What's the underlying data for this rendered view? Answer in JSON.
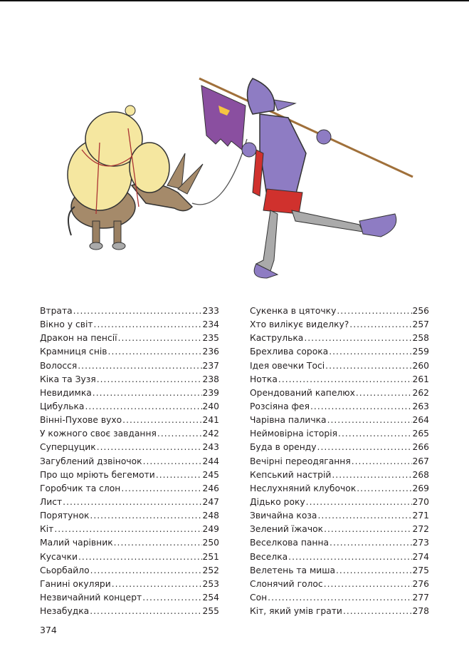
{
  "illustration": {
    "description_icon": "donkey-and-knight-illustration",
    "colors": {
      "knight": "#8e7cc3",
      "bundles": "#f5e7a0",
      "donkey": "#a58a6a",
      "flag": "#8a4fa0",
      "skirt": "#d0312d"
    }
  },
  "toc": {
    "left": [
      {
        "title": "Втрата",
        "page": "233"
      },
      {
        "title": "Вікно у світ",
        "page": "234"
      },
      {
        "title": "Дракон на пенсії",
        "page": "235"
      },
      {
        "title": "Крамниця снів",
        "page": "236"
      },
      {
        "title": "Волосся",
        "page": "237"
      },
      {
        "title": "Кіка та Зузя",
        "page": "238"
      },
      {
        "title": "Невидимка",
        "page": "239"
      },
      {
        "title": "Цибулька",
        "page": "240"
      },
      {
        "title": "Вінні-Пухове вухо",
        "page": "241"
      },
      {
        "title": "У кожного своє завдання",
        "page": "242"
      },
      {
        "title": "Суперцуцик",
        "page": "243"
      },
      {
        "title": "Загублений дзвіночок",
        "page": "244"
      },
      {
        "title": "Про що мріють бегемоти",
        "page": "245"
      },
      {
        "title": "Горобчик та слон",
        "page": "246"
      },
      {
        "title": "Лист",
        "page": "247"
      },
      {
        "title": "Порятунок",
        "page": "248"
      },
      {
        "title": "Кіт",
        "page": "249"
      },
      {
        "title": "Малий чарівник",
        "page": "250"
      },
      {
        "title": "Кусачки",
        "page": "251"
      },
      {
        "title": "Сьорбайло",
        "page": "252"
      },
      {
        "title": "Ганині окуляри",
        "page": "253"
      },
      {
        "title": "Незвичайний концерт",
        "page": "254"
      },
      {
        "title": "Незабудка",
        "page": "255"
      }
    ],
    "right": [
      {
        "title": "Сукенка в цяточку",
        "page": "256"
      },
      {
        "title": "Хто вилікує виделку?",
        "page": "257"
      },
      {
        "title": "Каструлька",
        "page": "258"
      },
      {
        "title": "Брехлива сорока",
        "page": "259"
      },
      {
        "title": "Ідея овечки Тосі",
        "page": "260"
      },
      {
        "title": "Нотка",
        "page": "261"
      },
      {
        "title": "Орендований капелюх",
        "page": "262"
      },
      {
        "title": "Розсіяна фея",
        "page": "263"
      },
      {
        "title": "Чарівна паличка",
        "page": "264"
      },
      {
        "title": "Неймовірна історія",
        "page": "265"
      },
      {
        "title": "Буда в оренду",
        "page": "266"
      },
      {
        "title": "Вечірні переодягання",
        "page": "267"
      },
      {
        "title": "Кепський настрій",
        "page": "268"
      },
      {
        "title": "Неслухняний клубочок",
        "page": "269"
      },
      {
        "title": "Дідько року",
        "page": "270"
      },
      {
        "title": "Звичайна коза",
        "page": "271"
      },
      {
        "title": "Зелений їжачок",
        "page": "272"
      },
      {
        "title": "Веселкова панна",
        "page": "273"
      },
      {
        "title": "Веселка",
        "page": "274"
      },
      {
        "title": "Велетень та миша",
        "page": "275"
      },
      {
        "title": "Слонячий голос",
        "page": "276"
      },
      {
        "title": "Сон",
        "page": "277"
      },
      {
        "title": "Кіт, який умів грати",
        "page": "278"
      }
    ]
  },
  "page_number": "374"
}
